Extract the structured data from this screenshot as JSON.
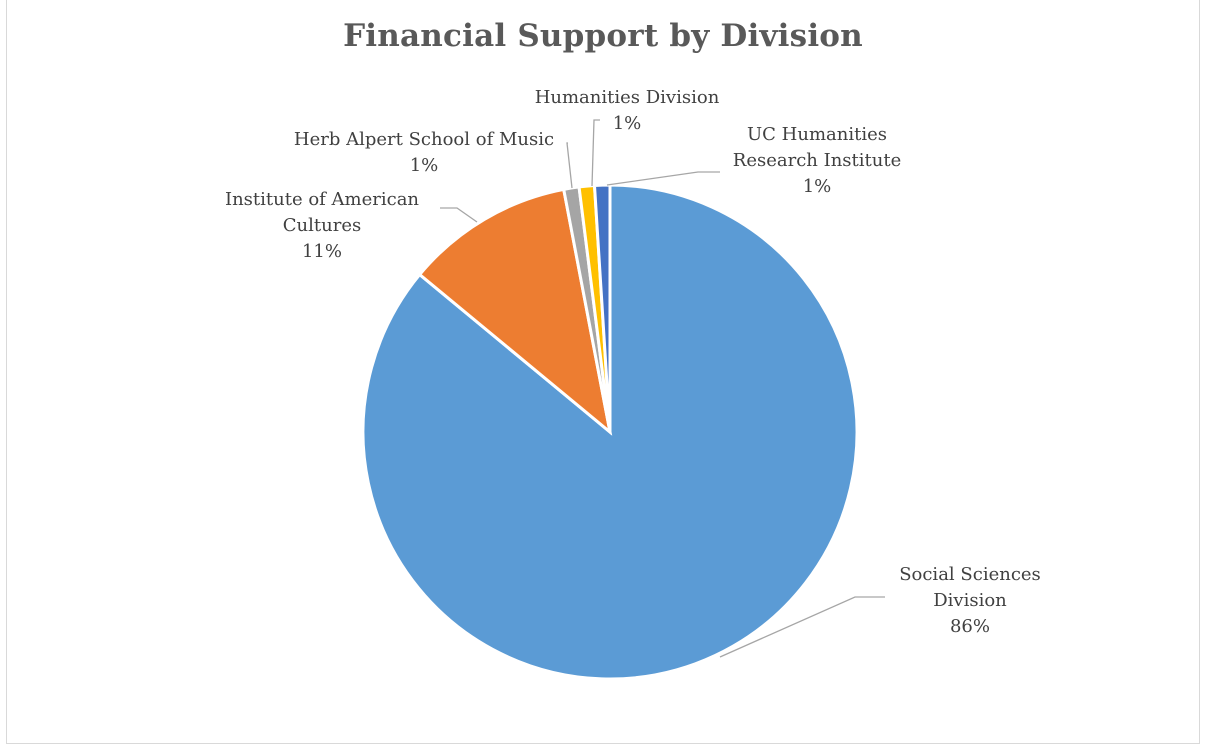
{
  "chart_data": {
    "type": "pie",
    "title": "Financial Support by Division",
    "slices": [
      {
        "name": "Social Sciences Division",
        "label_lines": [
          "Social Sciences",
          "Division"
        ],
        "percent_label": "86%",
        "value": 86,
        "color": "#5b9bd5"
      },
      {
        "name": "Institute of American Cultures",
        "label_lines": [
          "Institute of American",
          "Cultures"
        ],
        "percent_label": "11%",
        "value": 11,
        "color": "#ed7d31"
      },
      {
        "name": "Herb Alpert School of Music",
        "label_lines": [
          "Herb Alpert School of Music"
        ],
        "percent_label": "1%",
        "value": 1,
        "color": "#a5a5a5"
      },
      {
        "name": "Humanities Division",
        "label_lines": [
          "Humanities Division"
        ],
        "percent_label": "1%",
        "value": 1,
        "color": "#ffc000"
      },
      {
        "name": "UC Humanities Research Institute",
        "label_lines": [
          "UC Humanities",
          "Research Institute"
        ],
        "percent_label": "1%",
        "value": 1,
        "color": "#4472c4"
      }
    ],
    "start": "top, clockwise",
    "legend": "none",
    "data_labels": "outside with leader lines"
  }
}
